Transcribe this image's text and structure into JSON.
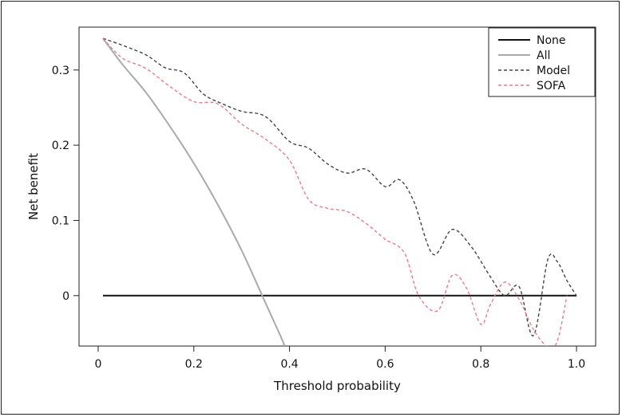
{
  "chart_data": {
    "type": "line",
    "title": "",
    "xlabel": "Threshold probability",
    "ylabel": "Net benefit",
    "xlim": [
      -0.04,
      1.04
    ],
    "ylim": [
      -0.067,
      0.357
    ],
    "xticks": [
      0,
      0.2,
      0.4,
      0.6,
      0.8,
      1.0
    ],
    "xtick_labels": [
      "0",
      "0.2",
      "0.4",
      "0.6",
      "0.8",
      "1.0"
    ],
    "yticks": [
      0,
      0.1,
      0.2,
      0.3
    ],
    "ytick_labels": [
      "0",
      "0.1",
      "0.2",
      "0.3"
    ],
    "grid": false,
    "legend_position": "top-right",
    "series": [
      {
        "name": "None",
        "color": "#111111",
        "style": "solid",
        "x": [
          0.01,
          1.0
        ],
        "y": [
          0,
          0
        ]
      },
      {
        "name": "All",
        "color": "#aaaaaa",
        "style": "solid",
        "x": [
          0.01,
          0.05,
          0.1,
          0.15,
          0.2,
          0.25,
          0.3,
          0.35,
          0.38,
          0.39
        ],
        "y": [
          0.342,
          0.308,
          0.27,
          0.225,
          0.176,
          0.121,
          0.06,
          -0.01,
          -0.052,
          -0.067
        ]
      },
      {
        "name": "Model",
        "color": "#444444",
        "style": "dashed",
        "x": [
          0.01,
          0.05,
          0.1,
          0.14,
          0.18,
          0.22,
          0.26,
          0.3,
          0.35,
          0.4,
          0.44,
          0.48,
          0.52,
          0.56,
          0.6,
          0.63,
          0.66,
          0.7,
          0.74,
          0.78,
          0.82,
          0.85,
          0.88,
          0.91,
          0.94,
          0.96,
          0.98,
          1.0
        ],
        "y": [
          0.342,
          0.333,
          0.32,
          0.303,
          0.296,
          0.268,
          0.255,
          0.245,
          0.238,
          0.205,
          0.196,
          0.175,
          0.163,
          0.168,
          0.145,
          0.154,
          0.125,
          0.055,
          0.088,
          0.065,
          0.025,
          0.0,
          0.012,
          -0.053,
          0.048,
          0.045,
          0.02,
          0.0
        ]
      },
      {
        "name": "SOFA",
        "color": "#e87b8e",
        "style": "dashed",
        "x": [
          0.01,
          0.05,
          0.1,
          0.15,
          0.2,
          0.25,
          0.3,
          0.35,
          0.4,
          0.44,
          0.48,
          0.52,
          0.56,
          0.6,
          0.64,
          0.67,
          0.71,
          0.74,
          0.77,
          0.8,
          0.82,
          0.85,
          0.88,
          0.91,
          0.94,
          0.96,
          0.98
        ],
        "y": [
          0.342,
          0.316,
          0.302,
          0.278,
          0.258,
          0.255,
          0.228,
          0.208,
          0.18,
          0.128,
          0.116,
          0.112,
          0.096,
          0.075,
          0.057,
          0.0,
          -0.02,
          0.027,
          0.01,
          -0.038,
          -0.012,
          0.018,
          -0.005,
          -0.045,
          -0.068,
          -0.06,
          0.0
        ]
      }
    ]
  }
}
